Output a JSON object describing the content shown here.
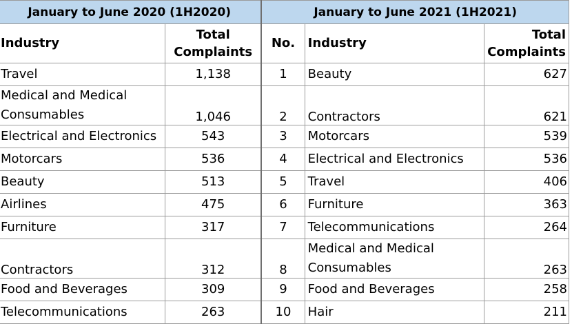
{
  "period_2020": "January to June 2020 (1H2020)",
  "period_2021": "January to June 2021 (1H2021)",
  "headers": {
    "industry": "Industry",
    "total_complaints": "Total Complaints",
    "total_line1": "Total",
    "total_line2": "Complaints",
    "no": "No."
  },
  "rows": [
    {
      "no": "1",
      "industry_2020": "Travel",
      "total_2020": "1,138",
      "industry_2021": "Beauty",
      "total_2021": "627"
    },
    {
      "no": "2",
      "industry_2020": "Medical and Medical Consumables",
      "total_2020": "1,046",
      "industry_2021": "Contractors",
      "total_2021": "621"
    },
    {
      "no": "3",
      "industry_2020": "Electrical and Electronics",
      "total_2020": "543",
      "industry_2021": "Motorcars",
      "total_2021": "539"
    },
    {
      "no": "4",
      "industry_2020": "Motorcars",
      "total_2020": "536",
      "industry_2021": "Electrical and Electronics",
      "total_2021": "536"
    },
    {
      "no": "5",
      "industry_2020": "Beauty",
      "total_2020": "513",
      "industry_2021": "Travel",
      "total_2021": "406"
    },
    {
      "no": "6",
      "industry_2020": "Airlines",
      "total_2020": "475",
      "industry_2021": "Furniture",
      "total_2021": "363"
    },
    {
      "no": "7",
      "industry_2020": "Furniture",
      "total_2020": "317",
      "industry_2021": "Telecommunications",
      "total_2021": "264"
    },
    {
      "no": "8",
      "industry_2020": "Contractors",
      "total_2020": "312",
      "industry_2021": "Medical and Medical Consumables",
      "total_2021": "263"
    },
    {
      "no": "9",
      "industry_2020": "Food and Beverages",
      "total_2020": "309",
      "industry_2021": "Food and Beverages",
      "total_2021": "258"
    },
    {
      "no": "10",
      "industry_2020": "Telecommunications",
      "total_2020": "263",
      "industry_2021": "Hair",
      "total_2021": "211"
    }
  ]
}
